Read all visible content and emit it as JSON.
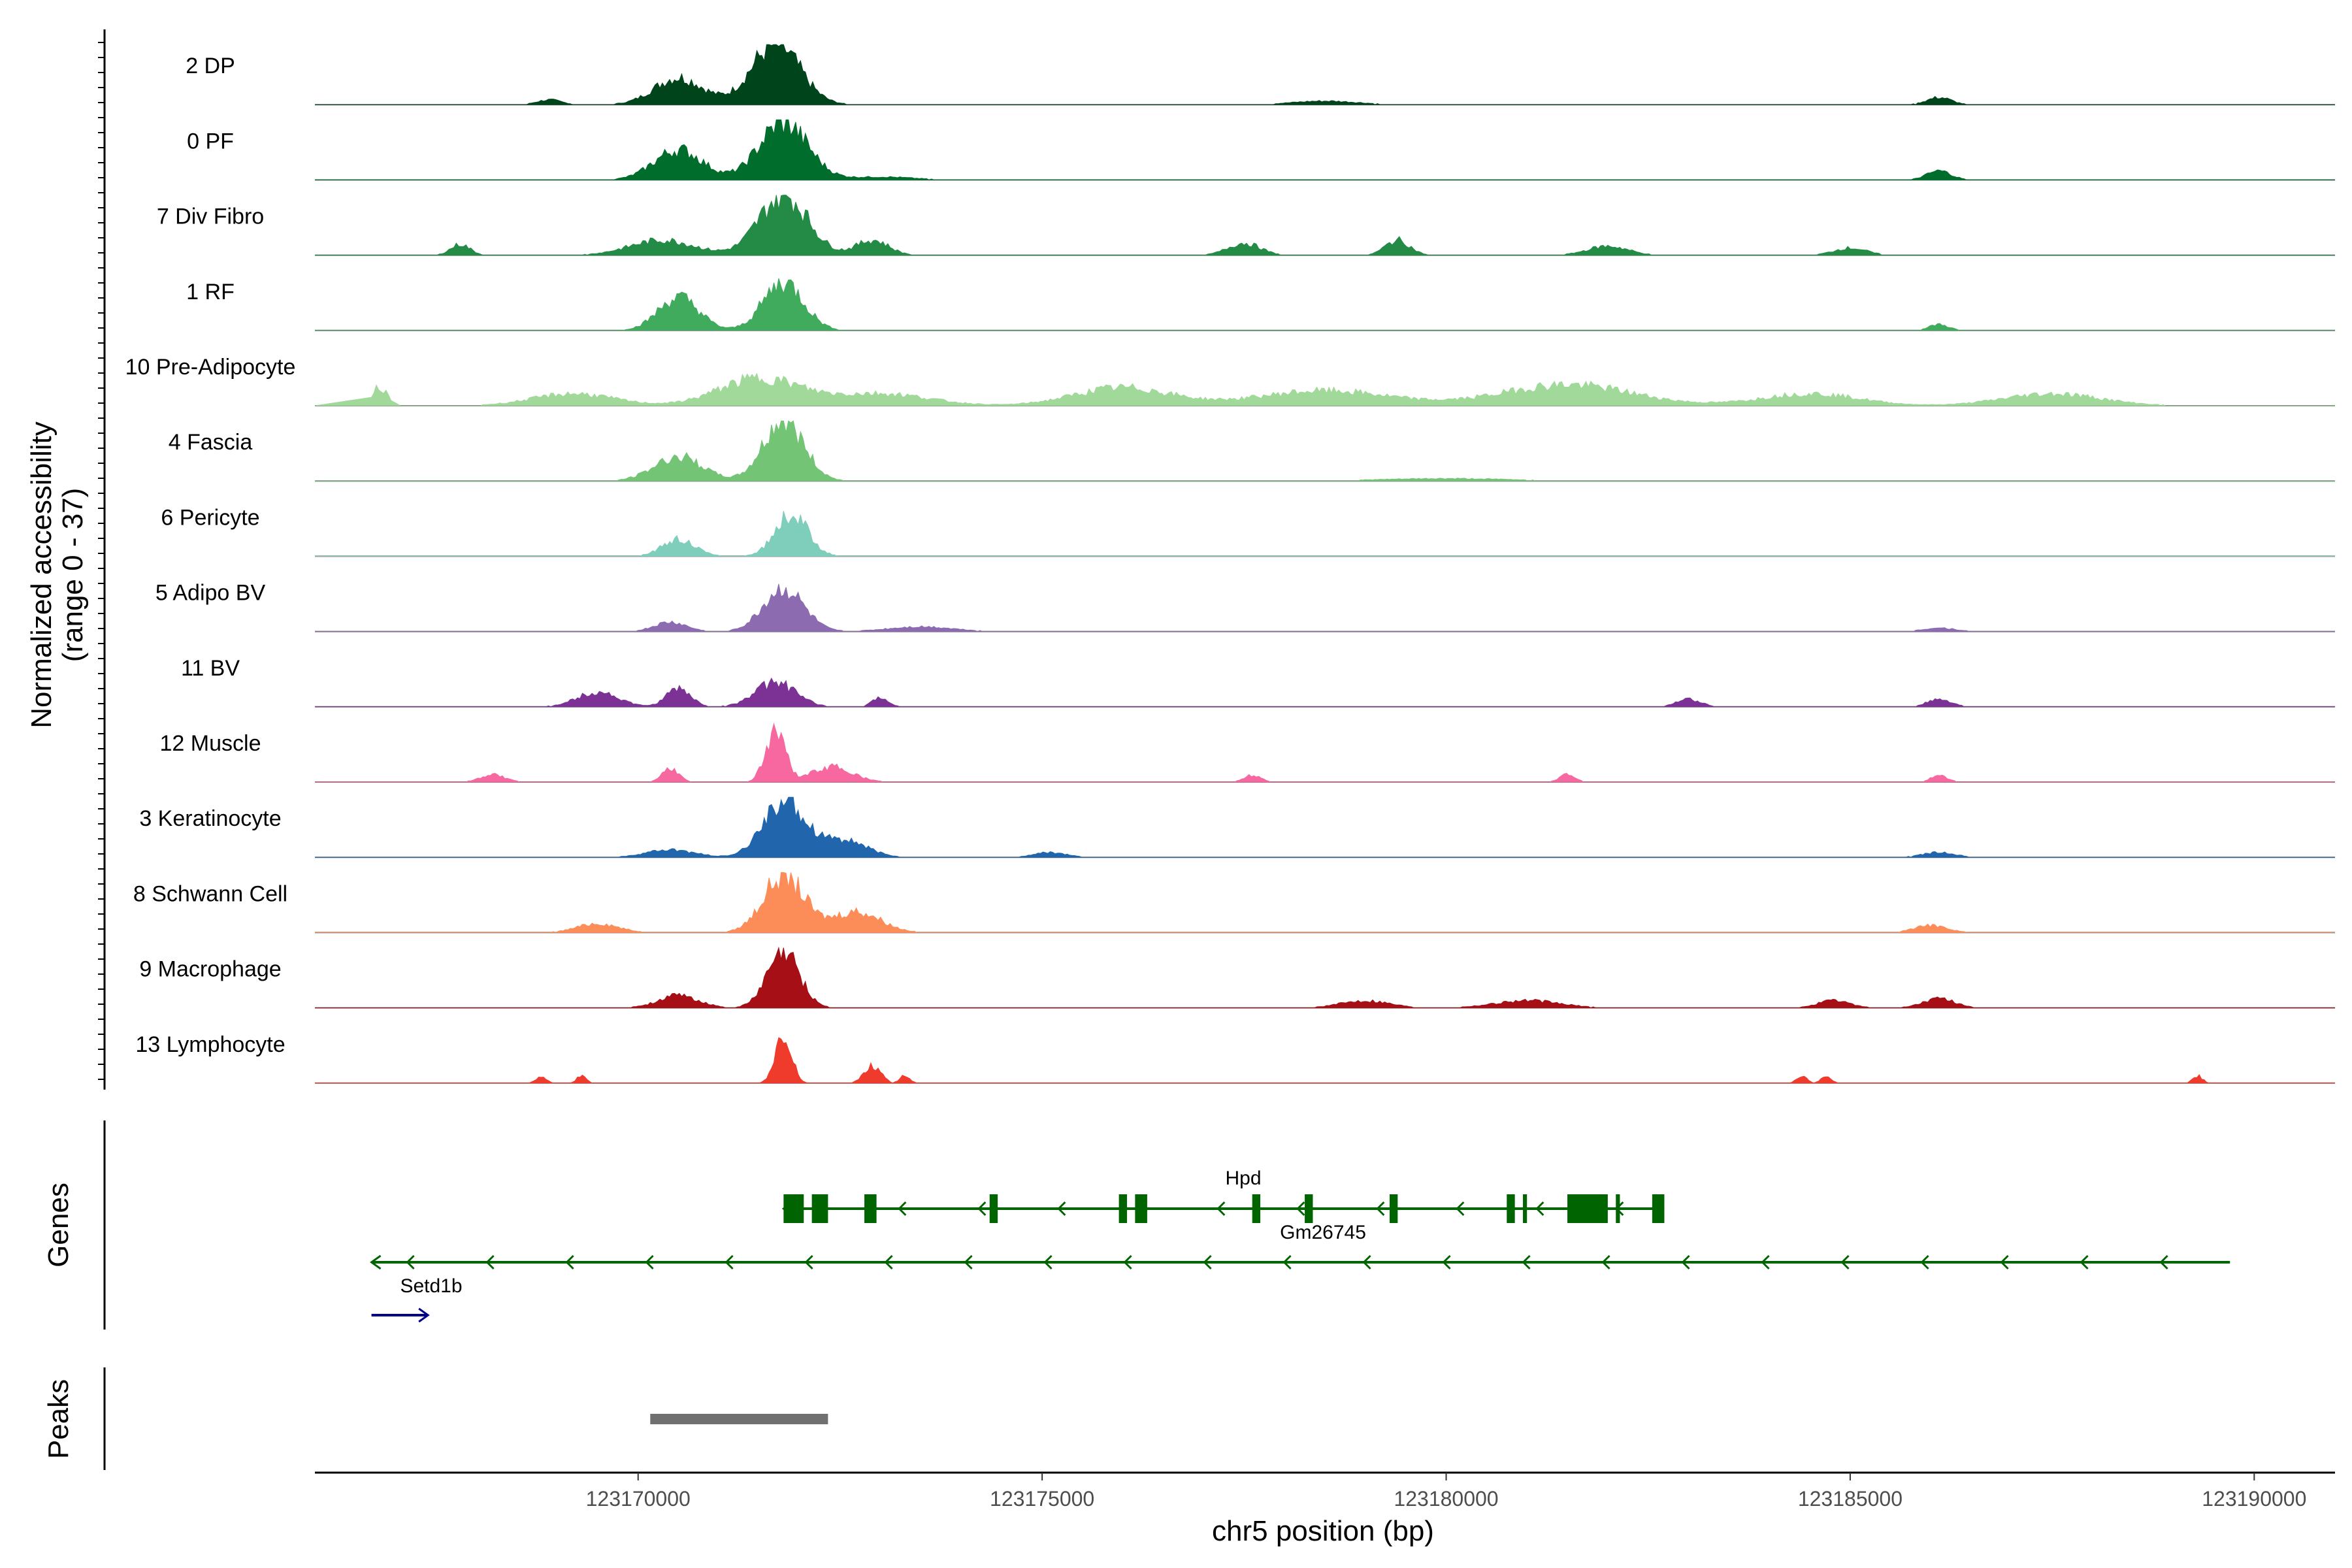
{
  "chart_data": {
    "type": "area",
    "ylabel": "Normalized accessibility\n(range 0 - 37)",
    "ylabel_lines": [
      "Normalized accessibility",
      "(range 0 - 37)"
    ],
    "xlabel": "chr5 position (bp)",
    "xlim": [
      123166000,
      123191000
    ],
    "xticks": [
      123170000,
      123175000,
      123180000,
      123185000,
      123190000
    ],
    "xtick_labels": [
      "123170000",
      "123175000",
      "123180000",
      "123185000",
      "123190000"
    ],
    "y_range": [
      0,
      37
    ],
    "grid": false,
    "series": [
      {
        "name": "2 DP",
        "color": "#00441b",
        "peaks": [
          [
            123168900,
            0.08,
            150
          ],
          [
            123170500,
            0.45,
            300
          ],
          [
            123171700,
            1.0,
            300
          ],
          [
            123178500,
            0.06,
            400
          ],
          [
            123186100,
            0.12,
            150
          ]
        ]
      },
      {
        "name": "0 PF",
        "color": "#006d2c",
        "peaks": [
          [
            123170500,
            0.5,
            300
          ],
          [
            123171800,
            0.95,
            300
          ],
          [
            123173000,
            0.05,
            400
          ],
          [
            123186100,
            0.15,
            150
          ]
        ]
      },
      {
        "name": "7 Div Fibro",
        "color": "#238b45",
        "peaks": [
          [
            123167800,
            0.18,
            120
          ],
          [
            123170300,
            0.25,
            400
          ],
          [
            123171800,
            1.0,
            300
          ],
          [
            123172900,
            0.25,
            200
          ],
          [
            123177500,
            0.2,
            200
          ],
          [
            123179400,
            0.25,
            150
          ],
          [
            123182000,
            0.15,
            250
          ],
          [
            123185000,
            0.12,
            200
          ]
        ]
      },
      {
        "name": "1 RF",
        "color": "#41ab5d",
        "peaks": [
          [
            123170500,
            0.55,
            250
          ],
          [
            123171800,
            0.8,
            250
          ],
          [
            123186100,
            0.1,
            120
          ]
        ]
      },
      {
        "name": "10 Pre-Adipocyte",
        "color": "#a1d99b",
        "peaks": [
          [
            123166800,
            0.3,
            100
          ],
          [
            123169200,
            0.2,
            500
          ],
          [
            123171500,
            0.45,
            500
          ],
          [
            123173000,
            0.2,
            600
          ],
          [
            123176000,
            0.3,
            600
          ],
          [
            123178500,
            0.25,
            800
          ],
          [
            123181500,
            0.35,
            800
          ],
          [
            123184500,
            0.2,
            600
          ],
          [
            123187500,
            0.2,
            600
          ]
        ]
      },
      {
        "name": "4 Fascia",
        "color": "#74c476",
        "peaks": [
          [
            123170500,
            0.4,
            300
          ],
          [
            123171800,
            1.0,
            250
          ],
          [
            123180000,
            0.04,
            800
          ]
        ]
      },
      {
        "name": "6 Pericyte",
        "color": "#7fcdbb",
        "peaks": [
          [
            123170500,
            0.28,
            200
          ],
          [
            123171900,
            0.7,
            200
          ]
        ]
      },
      {
        "name": "5 Adipo BV",
        "color": "#8c6bb1",
        "peaks": [
          [
            123170400,
            0.15,
            200
          ],
          [
            123171800,
            0.7,
            250
          ],
          [
            123173500,
            0.08,
            400
          ],
          [
            123186100,
            0.06,
            200
          ]
        ]
      },
      {
        "name": "11 BV",
        "color": "#7b3294",
        "peaks": [
          [
            123169500,
            0.25,
            250
          ],
          [
            123170500,
            0.3,
            150
          ],
          [
            123171700,
            0.4,
            250
          ],
          [
            123173000,
            0.15,
            100
          ],
          [
            123183000,
            0.12,
            150
          ],
          [
            123186100,
            0.12,
            150
          ]
        ]
      },
      {
        "name": "12 Muscle",
        "color": "#f768a1",
        "peaks": [
          [
            123168200,
            0.12,
            150
          ],
          [
            123170400,
            0.22,
            100
          ],
          [
            123171700,
            0.85,
            120
          ],
          [
            123172400,
            0.25,
            250
          ],
          [
            123177600,
            0.12,
            100
          ],
          [
            123181500,
            0.12,
            100
          ],
          [
            123186100,
            0.12,
            100
          ]
        ]
      },
      {
        "name": "3 Keratinocyte",
        "color": "#2166ac",
        "peaks": [
          [
            123170400,
            0.12,
            300
          ],
          [
            123171800,
            0.95,
            250
          ],
          [
            123172500,
            0.3,
            300
          ],
          [
            123175100,
            0.08,
            200
          ],
          [
            123186100,
            0.08,
            200
          ]
        ]
      },
      {
        "name": "8 Schwann Cell",
        "color": "#fc8d59",
        "peaks": [
          [
            123169500,
            0.15,
            250
          ],
          [
            123171800,
            0.95,
            250
          ],
          [
            123172700,
            0.35,
            300
          ],
          [
            123186000,
            0.12,
            200
          ]
        ]
      },
      {
        "name": "9 Macrophage",
        "color": "#a50f15",
        "peaks": [
          [
            123170500,
            0.2,
            250
          ],
          [
            123171800,
            0.9,
            200
          ],
          [
            123179000,
            0.12,
            300
          ],
          [
            123181000,
            0.12,
            400
          ],
          [
            123184800,
            0.12,
            200
          ],
          [
            123186100,
            0.15,
            200
          ]
        ]
      },
      {
        "name": "13 Lymphocyte",
        "color": "#ef3b2c",
        "peaks": [
          [
            123168800,
            0.12,
            60
          ],
          [
            123169300,
            0.12,
            60
          ],
          [
            123171800,
            0.75,
            100
          ],
          [
            123172900,
            0.3,
            100
          ],
          [
            123173300,
            0.12,
            60
          ],
          [
            123184400,
            0.12,
            60
          ],
          [
            123184700,
            0.12,
            60
          ],
          [
            123189300,
            0.12,
            60
          ]
        ]
      }
    ],
    "genes": {
      "title": "Genes",
      "items": [
        {
          "name": "Hpd",
          "strand": "-",
          "start": 123171800,
          "end": 123182700,
          "color": "#006400",
          "exons": [
            [
              123171800,
              123172050
            ],
            [
              123172150,
              123172350
            ],
            [
              123172800,
              123172950
            ],
            [
              123174350,
              123174450
            ],
            [
              123175950,
              123176050
            ],
            [
              123176150,
              123176300
            ],
            [
              123177600,
              123177700
            ],
            [
              123178250,
              123178350
            ],
            [
              123179300,
              123179400
            ],
            [
              123180750,
              123180850
            ],
            [
              123180950,
              123181000
            ],
            [
              123181500,
              123182000
            ],
            [
              123182100,
              123182150
            ],
            [
              123182550,
              123182700
            ]
          ]
        },
        {
          "name": "Gm26745",
          "strand": "-",
          "start": 123166700,
          "end": 123189700,
          "color": "#006400",
          "exons": []
        },
        {
          "name": "Setd1b",
          "strand": "+",
          "start": 123166700,
          "end": 123167400,
          "color": "#00008b",
          "exons": []
        }
      ]
    },
    "peaks_track": {
      "title": "Peaks",
      "regions": [
        [
          123170150,
          123172350
        ]
      ],
      "color": "#707070"
    }
  }
}
